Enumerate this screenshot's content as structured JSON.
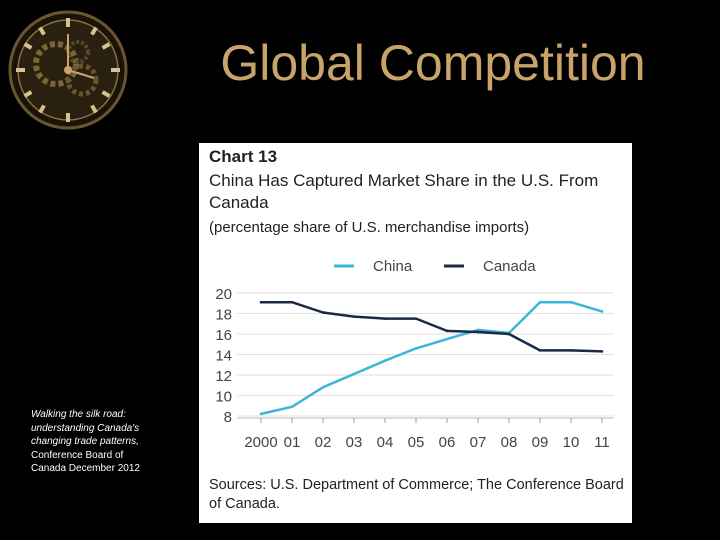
{
  "slide": {
    "title": "Global Competition",
    "citation_italic": "Walking the silk road: understanding Canada's changing trade patterns,",
    "citation_plain": "Conference Board of Canada December 2012"
  },
  "chart_data": {
    "type": "line",
    "chart_number": "Chart 13",
    "title": "China Has Captured Market Share in the U.S. From Canada",
    "subtitle": "(percentage share of U.S. merchandise imports)",
    "source": "Sources: U.S. Department of Commerce; The Conference Board of Canada.",
    "categories": [
      "2000",
      "01",
      "02",
      "03",
      "04",
      "05",
      "06",
      "07",
      "08",
      "09",
      "10",
      "11"
    ],
    "ylim": [
      8,
      20
    ],
    "yticks": [
      "20",
      "18",
      "16",
      "14",
      "12",
      "10",
      "8"
    ],
    "legend_position": "top",
    "grid": true,
    "series": [
      {
        "name": "China",
        "color": "#3bb5d8",
        "values": [
          8.2,
          8.9,
          10.8,
          12.1,
          13.4,
          14.6,
          15.5,
          16.4,
          16.1,
          19.1,
          19.1,
          18.2
        ]
      },
      {
        "name": "Canada",
        "color": "#1a2a44",
        "values": [
          19.1,
          19.1,
          18.1,
          17.7,
          17.5,
          17.5,
          16.3,
          16.2,
          16.0,
          14.4,
          14.4,
          14.3
        ]
      }
    ]
  }
}
